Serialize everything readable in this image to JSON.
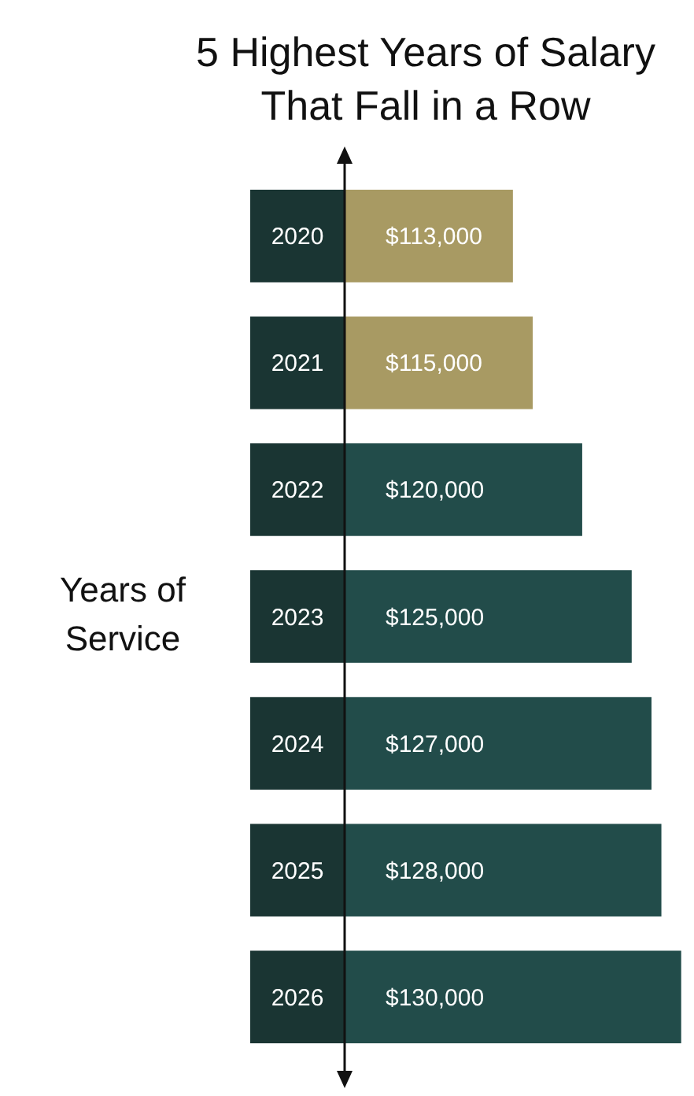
{
  "chart_data": {
    "type": "bar",
    "orientation": "horizontal",
    "title": "5 Highest Years of Salary That Fall in a Row",
    "ylabel": "Years of Service",
    "categories": [
      "2020",
      "2021",
      "2022",
      "2023",
      "2024",
      "2025",
      "2026"
    ],
    "values": [
      113000,
      115000,
      120000,
      125000,
      127000,
      128000,
      130000
    ],
    "value_labels": [
      "$113,000",
      "$115,000",
      "$120,000",
      "$125,000",
      "$127,000",
      "$128,000",
      "$130,000"
    ],
    "colors": [
      "#a89a63",
      "#a89a63",
      "#224c4a",
      "#224c4a",
      "#224c4a",
      "#224c4a",
      "#224c4a"
    ],
    "xlim": [
      96000,
      130500
    ]
  }
}
